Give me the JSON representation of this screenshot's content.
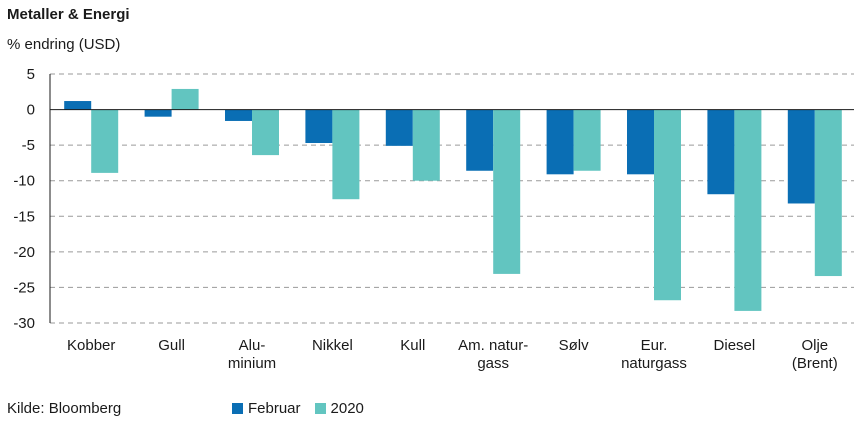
{
  "title": "Metaller & Energi",
  "unit_label": "% endring (USD)",
  "source": "Kilde: Bloomberg",
  "colors": {
    "februar": "#0a6eb4",
    "y2020": "#62c5c0",
    "grid": "#9a9a9a",
    "axis": "#1a1a1a"
  },
  "chart_data": {
    "type": "bar",
    "categories": [
      [
        "Kobber"
      ],
      [
        "Gull"
      ],
      [
        "Alu-",
        "minium"
      ],
      [
        "Nikkel"
      ],
      [
        "Kull"
      ],
      [
        "Am. natur-",
        "gass"
      ],
      [
        "Sølv"
      ],
      [
        "Eur.",
        "naturgass"
      ],
      [
        "Diesel"
      ],
      [
        "Olje",
        "(Brent)"
      ]
    ],
    "series": [
      {
        "name": "Februar",
        "values": [
          1.2,
          -1.0,
          -1.6,
          -4.7,
          -5.1,
          -8.6,
          -9.1,
          -9.1,
          -11.9,
          -13.2
        ]
      },
      {
        "name": "2020",
        "values": [
          -8.9,
          2.9,
          -6.4,
          -12.6,
          -10.0,
          -23.1,
          -8.6,
          -26.8,
          -28.3,
          -23.4
        ]
      }
    ],
    "ylim": [
      -30,
      5
    ],
    "yticks": [
      5,
      0,
      -5,
      -10,
      -15,
      -20,
      -25,
      -30
    ],
    "grid": true,
    "legend": "bottom"
  }
}
